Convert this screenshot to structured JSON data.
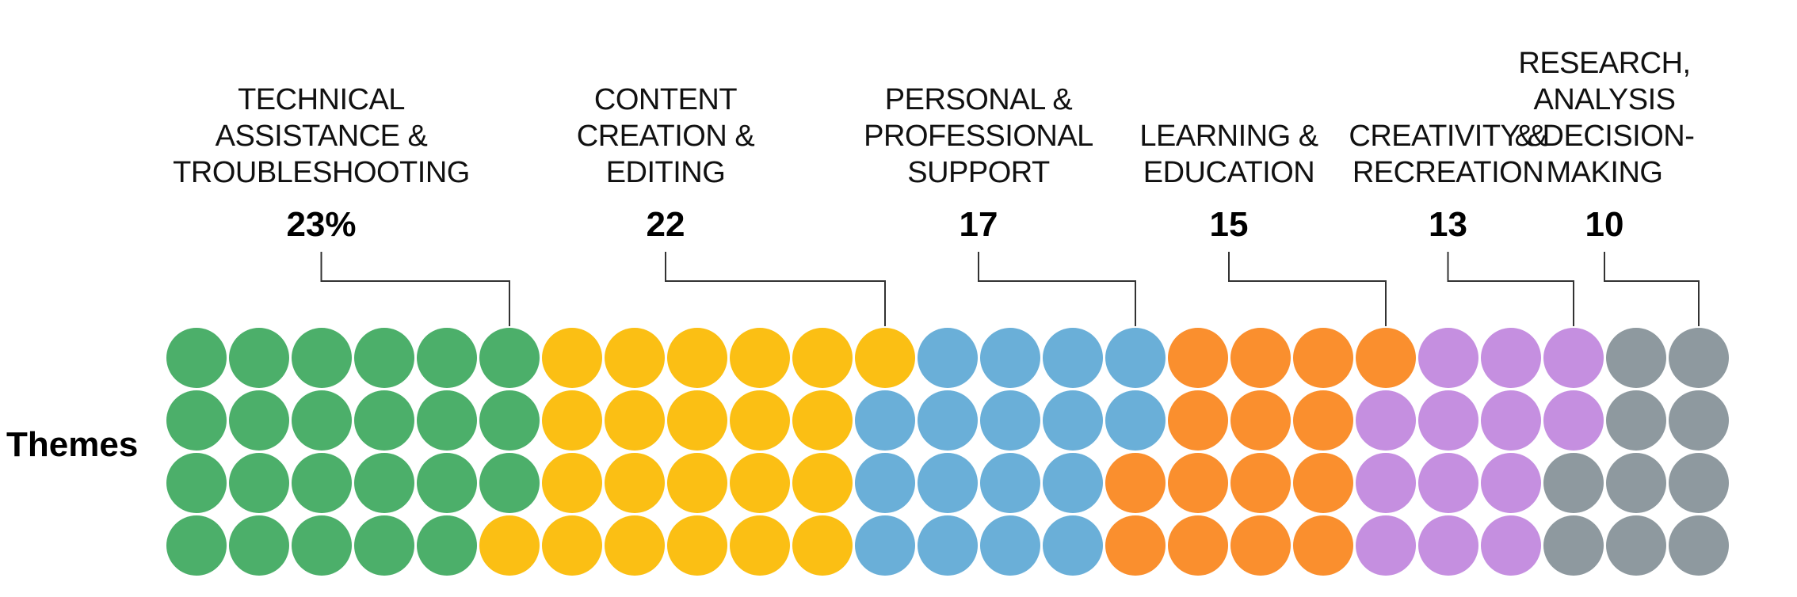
{
  "chart_data": {
    "type": "waffle",
    "row_label": "Themes",
    "grid": {
      "rows": 4,
      "columns": 25
    },
    "fill_order": "column-major, top to bottom",
    "categories": [
      {
        "name_lines": [
          "TECHNICAL",
          "ASSISTANCE &",
          "TROUBLESHOOTING"
        ],
        "value": 23,
        "value_label": "23%",
        "dots": 23,
        "color": "#4caf6a"
      },
      {
        "name_lines": [
          "CONTENT",
          "CREATION &",
          "EDITING"
        ],
        "value": 22,
        "value_label": "22",
        "dots": 22,
        "color": "#fbbf14"
      },
      {
        "name_lines": [
          "PERSONAL &",
          "PROFESSIONAL",
          "SUPPORT"
        ],
        "value": 17,
        "value_label": "17",
        "dots": 17,
        "color": "#6aafd8"
      },
      {
        "name_lines": [
          "LEARNING &",
          "EDUCATION"
        ],
        "value": 15,
        "value_label": "15",
        "dots": 15,
        "color": "#fa8f2e"
      },
      {
        "name_lines": [
          "CREATIVITY &",
          "RECREATION"
        ],
        "value": 13,
        "value_label": "13",
        "dots": 13,
        "color": "#c58fe0"
      },
      {
        "name_lines": [
          "RESEARCH,",
          "ANALYSIS",
          "& DECISION-",
          "MAKING"
        ],
        "value": 10,
        "value_label": "10",
        "dots": 10,
        "color": "#8e999f"
      }
    ]
  }
}
